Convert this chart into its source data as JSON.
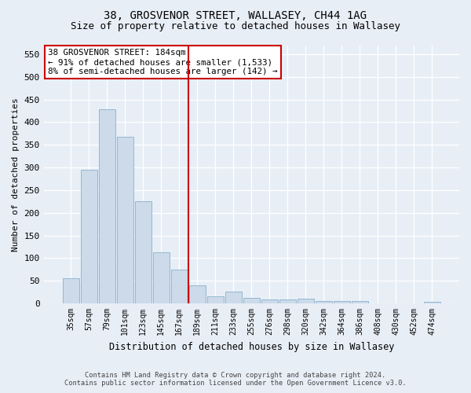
{
  "title_line1": "38, GROSVENOR STREET, WALLASEY, CH44 1AG",
  "title_line2": "Size of property relative to detached houses in Wallasey",
  "xlabel": "Distribution of detached houses by size in Wallasey",
  "ylabel": "Number of detached properties",
  "categories": [
    "35sqm",
    "57sqm",
    "79sqm",
    "101sqm",
    "123sqm",
    "145sqm",
    "167sqm",
    "189sqm",
    "211sqm",
    "233sqm",
    "255sqm",
    "276sqm",
    "298sqm",
    "320sqm",
    "342sqm",
    "364sqm",
    "386sqm",
    "408sqm",
    "430sqm",
    "452sqm",
    "474sqm"
  ],
  "values": [
    55,
    295,
    428,
    368,
    225,
    113,
    75,
    40,
    15,
    26,
    13,
    9,
    9,
    10,
    5,
    5,
    5,
    0,
    0,
    0,
    3
  ],
  "bar_color": "#ccdaea",
  "bar_edge_color": "#8ab0cc",
  "vline_index": 7,
  "vline_color": "#cc0000",
  "annotation_line1": "38 GROSVENOR STREET: 184sqm",
  "annotation_line2": "← 91% of detached houses are smaller (1,533)",
  "annotation_line3": "8% of semi-detached houses are larger (142) →",
  "annotation_box_color": "#ffffff",
  "annotation_box_edge_color": "#cc0000",
  "ylim": [
    0,
    570
  ],
  "yticks": [
    0,
    50,
    100,
    150,
    200,
    250,
    300,
    350,
    400,
    450,
    500,
    550
  ],
  "footer_line1": "Contains HM Land Registry data © Crown copyright and database right 2024.",
  "footer_line2": "Contains public sector information licensed under the Open Government Licence v3.0.",
  "bg_color": "#e8eef6",
  "plot_bg_color": "#e8eef6",
  "grid_color": "#ffffff",
  "title1_fontsize": 10,
  "title2_fontsize": 9
}
